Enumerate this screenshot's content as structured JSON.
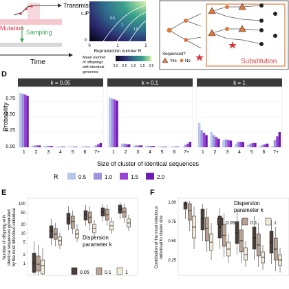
{
  "panel_top_left": {
    "transmission_label": "Transmission",
    "mutation_label": "Mutation",
    "sampling_label": "Sampling",
    "time_label": "Time",
    "colors": {
      "mutation": "#e0384b",
      "sampling": "#3aa655",
      "bar": "#f4c7cd"
    }
  },
  "panel_heatmap": {
    "ylabel": "p",
    "xlabel": "Reproduction number R",
    "y_ticks": [
      "0.2",
      "0"
    ],
    "x_ticks": [
      "0",
      "1",
      "2"
    ],
    "contour_labels": [
      "0.5",
      "1",
      "1.5"
    ],
    "legend_title_lines": [
      "Mean number",
      "of offsprings",
      "with identical",
      "genomes"
    ],
    "legend_ticks": [
      "0.0",
      "0.5",
      "1.0",
      "1.5",
      "2.0"
    ]
  },
  "panel_tree": {
    "question": "Sequenced?",
    "yes": "Yes",
    "no": "No",
    "substitution_label": "Substitution",
    "colors": {
      "accent": "#e07a3c",
      "node": "#222222",
      "mutation": "#d23a3a"
    }
  },
  "panel_d": {
    "panel_label": "D",
    "ylabel": "Probability",
    "xlabel": "Size of cluster of identical sequences",
    "legend_title": "R",
    "legend_items": [
      "0.5",
      "1.0",
      "1.5",
      "2.0"
    ],
    "colors": [
      "#b7c7ea",
      "#9c95e0",
      "#9a43d6",
      "#6e1fb3"
    ],
    "y_ticks": [
      "0.75",
      "0.50",
      "0.25",
      "0.00"
    ]
  },
  "chart_data": {
    "type": "bar",
    "categories": [
      "1",
      "2",
      "3",
      "4",
      "5",
      "6",
      "7+"
    ],
    "ylim": [
      0,
      1
    ],
    "panels": [
      {
        "title": "k = 0.05",
        "series": [
          {
            "name": "0.5",
            "values": [
              0.9,
              0.03,
              0.02,
              0.01,
              0.01,
              0.01,
              0.01
            ]
          },
          {
            "name": "1.0",
            "values": [
              0.88,
              0.03,
              0.02,
              0.01,
              0.01,
              0.01,
              0.03
            ]
          },
          {
            "name": "1.5",
            "values": [
              0.87,
              0.03,
              0.02,
              0.01,
              0.01,
              0.01,
              0.05
            ]
          },
          {
            "name": "2.0",
            "values": [
              0.85,
              0.03,
              0.02,
              0.01,
              0.01,
              0.01,
              0.07
            ]
          }
        ]
      },
      {
        "title": "k = 0.1",
        "series": [
          {
            "name": "0.5",
            "values": [
              0.82,
              0.06,
              0.03,
              0.02,
              0.01,
              0.01,
              0.01
            ]
          },
          {
            "name": "1.0",
            "values": [
              0.8,
              0.06,
              0.03,
              0.02,
              0.01,
              0.01,
              0.04
            ]
          },
          {
            "name": "1.5",
            "values": [
              0.79,
              0.05,
              0.03,
              0.02,
              0.01,
              0.01,
              0.06
            ]
          },
          {
            "name": "2.0",
            "values": [
              0.77,
              0.05,
              0.03,
              0.02,
              0.01,
              0.01,
              0.09
            ]
          }
        ]
      },
      {
        "title": "k = 1",
        "series": [
          {
            "name": "0.5",
            "values": [
              0.4,
              0.25,
              0.12,
              0.06,
              0.04,
              0.02,
              0.02
            ]
          },
          {
            "name": "1.0",
            "values": [
              0.28,
              0.2,
              0.13,
              0.09,
              0.06,
              0.04,
              0.12
            ]
          },
          {
            "name": "1.5",
            "values": [
              0.24,
              0.17,
              0.12,
              0.09,
              0.07,
              0.05,
              0.18
            ]
          },
          {
            "name": "2.0",
            "values": [
              0.2,
              0.14,
              0.11,
              0.09,
              0.07,
              0.06,
              0.25
            ]
          }
        ]
      }
    ]
  },
  "panel_e": {
    "panel_label": "E",
    "ylabel_lines": [
      "Number of offspring with",
      "identical sequences generated",
      "by the most infectious individual"
    ],
    "y_ticks": [
      "100",
      "50",
      "20",
      "10",
      "5",
      "2",
      "1"
    ],
    "legend_title_lines": [
      "Dispersion",
      "parameter k"
    ],
    "legend_items": [
      "0.05",
      "0.1",
      "1"
    ],
    "colors": [
      "#4a3f38",
      "#b9a393",
      "#f3ead9"
    ]
  },
  "panel_f": {
    "panel_label": "F",
    "ylabel_lines": [
      "Contribution of the most infectious",
      "individual to cluster size"
    ],
    "y_ticks": [
      "1.00",
      "0.75",
      "0.50",
      "0.25"
    ],
    "legend_title_lines": [
      "Dispersion",
      "parameter k"
    ],
    "legend_items": [
      "0.05",
      "0.1",
      "1"
    ],
    "colors": [
      "#4a3f38",
      "#b9a393",
      "#f3ead9"
    ]
  }
}
